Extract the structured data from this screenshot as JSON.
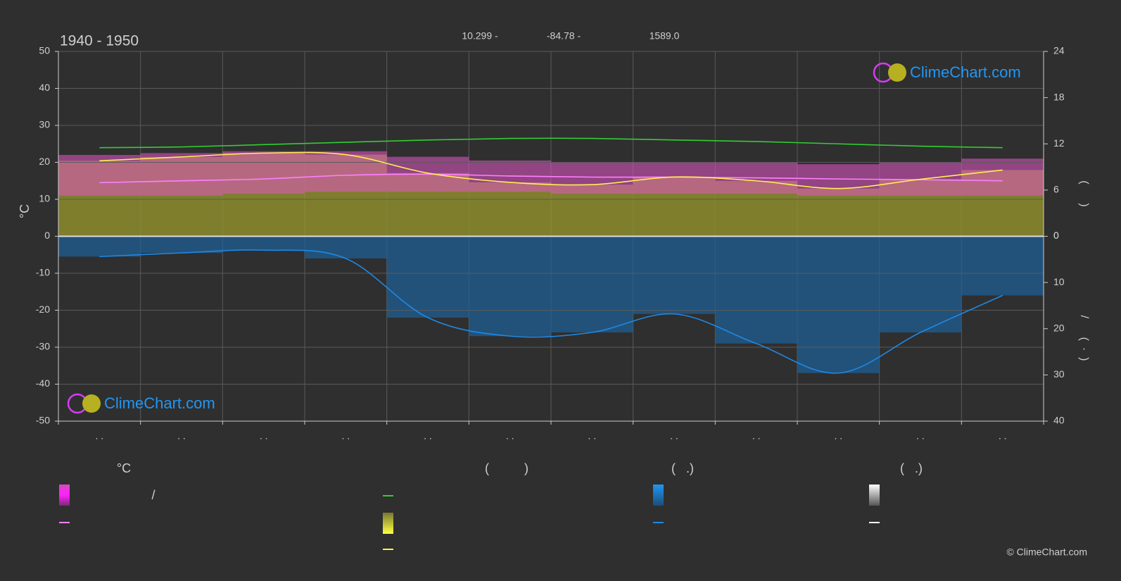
{
  "chart_data": {
    "type": "climate",
    "title": "1940 - 1950",
    "subtitle_items": [
      "10.299 -",
      "-84.78 -",
      "1589.0"
    ],
    "y_label": "°C",
    "y2_label": "(      )",
    "y3_label": "/      (  ·  )",
    "watermark": "ClimeChart.com",
    "copyright": "© ClimeChart.com",
    "legend_headers": [
      "°C",
      "(          )",
      "(   .)",
      "(   .)"
    ],
    "legend_texts": [
      "/"
    ],
    "categories": [
      ". .",
      ". .",
      ". .",
      ". .",
      ". .",
      ". .",
      ". .",
      ". .",
      ". .",
      ". .",
      ". .",
      ". ."
    ],
    "ylim": [
      -50,
      50
    ],
    "yticks": [
      -50,
      -40,
      -30,
      -20,
      -10,
      0,
      10,
      20,
      30,
      40,
      50
    ],
    "y2lim": [
      -24,
      24
    ],
    "y2ticks": [
      0,
      6,
      12,
      18,
      24
    ],
    "y3lim": [
      40,
      -40
    ],
    "y3ticks": [
      0,
      10,
      20,
      30,
      40
    ],
    "grid": true,
    "series": [
      {
        "color": "#e455c8",
        "values": [
          22,
          22.5,
          23,
          23,
          21.5,
          20.5,
          20,
          20,
          20,
          19.5,
          20,
          21
        ]
      },
      {
        "color": "#e455c8",
        "values": [
          11,
          11,
          11.5,
          12,
          12,
          12,
          11.5,
          11.5,
          11.5,
          11,
          11,
          11
        ]
      },
      {
        "color": "#ff80ff",
        "values": [
          14.5,
          15,
          15.5,
          16.5,
          16.8,
          16.3,
          16,
          16,
          15.8,
          15.5,
          15.3,
          15
        ]
      },
      {
        "color": "#33cc33",
        "axis": "y2",
        "values": [
          11.5,
          11.6,
          11.9,
          12.2,
          12.5,
          12.7,
          12.7,
          12.5,
          12.3,
          12.0,
          11.7,
          11.5
        ]
      },
      {
        "color": "#ffee55",
        "axis": "y2",
        "values": [
          9.8,
          10.3,
          10.8,
          10.6,
          8.2,
          7.0,
          6.7,
          7.7,
          7.2,
          6.2,
          7.4,
          8.6
        ]
      },
      {
        "color": "#1e88e5",
        "axis": "y3",
        "values": [
          4.4,
          3.6,
          3.0,
          4.8,
          17.6,
          21.6,
          20.8,
          16.8,
          23.2,
          29.6,
          20.8,
          12.8
        ]
      }
    ]
  }
}
